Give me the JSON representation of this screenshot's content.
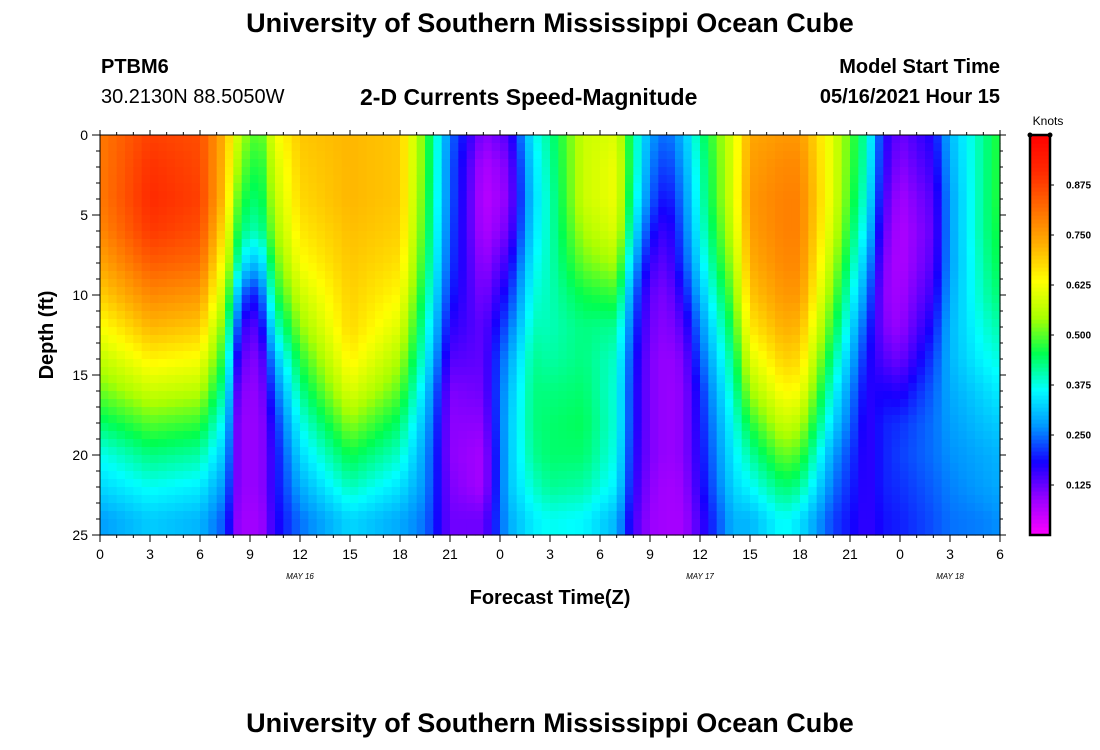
{
  "header": {
    "title": "University of Southern Mississippi Ocean Cube",
    "station_id": "PTBM6",
    "station_coords": "30.2130N  88.5050W",
    "model_start_label": "Model Start Time",
    "model_start_value": "05/16/2021 Hour 15"
  },
  "footer": {
    "title": "University of Southern Mississippi Ocean Cube"
  },
  "colors": {
    "palette": [
      "#ff00ff",
      "#9900ff",
      "#1500ff",
      "#0096ff",
      "#00ffff",
      "#00ff50",
      "#aaff00",
      "#ffff00",
      "#ffb000",
      "#ff6c00",
      "#ff2a00",
      "#ff0000"
    ]
  },
  "chart_data": {
    "type": "heatmap",
    "title": "2-D Currents Speed-Magnitude",
    "xlabel": "Forecast Time(Z)",
    "ylabel": "Depth (ft)",
    "x_hours_range": [
      0,
      54
    ],
    "ylim": [
      0,
      25
    ],
    "y_inverted": true,
    "y_ticks": [
      "0",
      "5",
      "10",
      "15",
      "20",
      "25"
    ],
    "x_ticks": [
      "0",
      "3",
      "6",
      "9",
      "12",
      "15",
      "18",
      "21",
      "0",
      "3",
      "6",
      "9",
      "12",
      "15",
      "18",
      "21",
      "0",
      "3",
      "6"
    ],
    "x_tick_step_hours": 3,
    "date_labels": [
      {
        "label": "MAY 16",
        "hour": 12
      },
      {
        "label": "MAY 17",
        "hour": 36
      },
      {
        "label": "MAY 18",
        "hour": 51
      }
    ],
    "colorbar": {
      "unit": "Knots",
      "range": [
        0,
        1.0
      ],
      "tick_labels": [
        "0.125",
        "0.250",
        "0.375",
        "0.500",
        "0.625",
        "0.750",
        "0.875"
      ],
      "tick_values": [
        0.125,
        0.25,
        0.375,
        0.5,
        0.625,
        0.75,
        0.875
      ]
    },
    "hours": [
      0,
      3,
      6,
      7.5,
      8.3,
      9,
      9.7,
      10.5,
      12,
      15,
      18,
      19.5,
      21,
      23,
      24.5,
      26,
      27,
      29,
      31,
      32,
      33,
      34,
      35,
      36,
      38,
      39,
      41,
      42,
      44,
      46,
      47,
      48,
      50,
      51,
      53,
      54
    ],
    "depths": [
      0,
      2,
      4,
      6,
      8,
      10,
      12,
      14,
      16,
      18,
      20,
      22,
      24,
      25
    ],
    "speed": [
      [
        0.8,
        0.8,
        0.8,
        0.78,
        0.74,
        0.69,
        0.63,
        0.57,
        0.51,
        0.44,
        0.37,
        0.33,
        0.28,
        0.28
      ],
      [
        0.88,
        0.9,
        0.91,
        0.89,
        0.84,
        0.78,
        0.72,
        0.65,
        0.58,
        0.5,
        0.43,
        0.37,
        0.32,
        0.32
      ],
      [
        0.86,
        0.87,
        0.88,
        0.86,
        0.82,
        0.76,
        0.7,
        0.63,
        0.56,
        0.48,
        0.41,
        0.35,
        0.3,
        0.3
      ],
      [
        0.72,
        0.71,
        0.7,
        0.66,
        0.61,
        0.56,
        0.5,
        0.45,
        0.4,
        0.35,
        0.31,
        0.27,
        0.23,
        0.23
      ],
      [
        0.58,
        0.54,
        0.5,
        0.46,
        0.4,
        0.3,
        0.22,
        0.16,
        0.12,
        0.1,
        0.1,
        0.1,
        0.09,
        0.09
      ],
      [
        0.5,
        0.47,
        0.44,
        0.4,
        0.3,
        0.18,
        0.12,
        0.1,
        0.09,
        0.09,
        0.09,
        0.09,
        0.08,
        0.08
      ],
      [
        0.5,
        0.47,
        0.45,
        0.42,
        0.33,
        0.24,
        0.18,
        0.13,
        0.11,
        0.1,
        0.1,
        0.1,
        0.09,
        0.09
      ],
      [
        0.62,
        0.59,
        0.57,
        0.54,
        0.5,
        0.45,
        0.38,
        0.3,
        0.24,
        0.2,
        0.18,
        0.18,
        0.17,
        0.17
      ],
      [
        0.7,
        0.69,
        0.68,
        0.66,
        0.63,
        0.58,
        0.53,
        0.47,
        0.42,
        0.37,
        0.33,
        0.29,
        0.25,
        0.25
      ],
      [
        0.72,
        0.72,
        0.72,
        0.71,
        0.7,
        0.69,
        0.68,
        0.65,
        0.6,
        0.53,
        0.46,
        0.4,
        0.33,
        0.33
      ],
      [
        0.7,
        0.7,
        0.7,
        0.69,
        0.67,
        0.64,
        0.6,
        0.55,
        0.5,
        0.44,
        0.39,
        0.34,
        0.29,
        0.29
      ],
      [
        0.5,
        0.5,
        0.49,
        0.48,
        0.46,
        0.43,
        0.4,
        0.37,
        0.33,
        0.3,
        0.28,
        0.27,
        0.25,
        0.25
      ],
      [
        0.25,
        0.24,
        0.24,
        0.23,
        0.22,
        0.2,
        0.17,
        0.14,
        0.11,
        0.1,
        0.1,
        0.11,
        0.12,
        0.12
      ],
      [
        0.1,
        0.07,
        0.06,
        0.07,
        0.09,
        0.11,
        0.13,
        0.13,
        0.12,
        0.1,
        0.08,
        0.08,
        0.12,
        0.12
      ],
      [
        0.14,
        0.11,
        0.1,
        0.12,
        0.16,
        0.2,
        0.24,
        0.28,
        0.3,
        0.31,
        0.31,
        0.31,
        0.29,
        0.29
      ],
      [
        0.36,
        0.34,
        0.33,
        0.34,
        0.36,
        0.38,
        0.4,
        0.42,
        0.43,
        0.43,
        0.42,
        0.39,
        0.35,
        0.35
      ],
      [
        0.42,
        0.41,
        0.4,
        0.4,
        0.4,
        0.4,
        0.4,
        0.41,
        0.43,
        0.44,
        0.44,
        0.42,
        0.37,
        0.37
      ],
      [
        0.58,
        0.58,
        0.58,
        0.55,
        0.51,
        0.46,
        0.43,
        0.43,
        0.44,
        0.45,
        0.44,
        0.41,
        0.36,
        0.36
      ],
      [
        0.6,
        0.62,
        0.62,
        0.6,
        0.55,
        0.48,
        0.42,
        0.39,
        0.38,
        0.38,
        0.37,
        0.35,
        0.3,
        0.3
      ],
      [
        0.42,
        0.42,
        0.4,
        0.36,
        0.3,
        0.25,
        0.22,
        0.2,
        0.19,
        0.19,
        0.18,
        0.17,
        0.15,
        0.15
      ],
      [
        0.28,
        0.26,
        0.24,
        0.2,
        0.16,
        0.13,
        0.12,
        0.11,
        0.11,
        0.11,
        0.11,
        0.1,
        0.09,
        0.09
      ],
      [
        0.24,
        0.21,
        0.18,
        0.15,
        0.13,
        0.11,
        0.1,
        0.09,
        0.09,
        0.09,
        0.09,
        0.08,
        0.08,
        0.08
      ],
      [
        0.3,
        0.28,
        0.26,
        0.24,
        0.22,
        0.18,
        0.14,
        0.11,
        0.1,
        0.1,
        0.1,
        0.09,
        0.08,
        0.08
      ],
      [
        0.42,
        0.4,
        0.39,
        0.37,
        0.34,
        0.3,
        0.26,
        0.23,
        0.2,
        0.19,
        0.18,
        0.17,
        0.15,
        0.15
      ],
      [
        0.6,
        0.6,
        0.6,
        0.58,
        0.55,
        0.51,
        0.47,
        0.43,
        0.4,
        0.37,
        0.35,
        0.33,
        0.3,
        0.3
      ],
      [
        0.74,
        0.75,
        0.76,
        0.75,
        0.73,
        0.7,
        0.66,
        0.6,
        0.54,
        0.47,
        0.41,
        0.36,
        0.3,
        0.3
      ],
      [
        0.76,
        0.78,
        0.79,
        0.79,
        0.78,
        0.76,
        0.73,
        0.69,
        0.64,
        0.58,
        0.51,
        0.44,
        0.37,
        0.37
      ],
      [
        0.76,
        0.78,
        0.79,
        0.79,
        0.78,
        0.76,
        0.72,
        0.68,
        0.63,
        0.56,
        0.49,
        0.42,
        0.34,
        0.34
      ],
      [
        0.6,
        0.6,
        0.6,
        0.58,
        0.55,
        0.51,
        0.47,
        0.42,
        0.37,
        0.33,
        0.28,
        0.25,
        0.22,
        0.22
      ],
      [
        0.4,
        0.39,
        0.37,
        0.34,
        0.3,
        0.26,
        0.22,
        0.19,
        0.17,
        0.16,
        0.16,
        0.16,
        0.16,
        0.16
      ],
      [
        0.18,
        0.17,
        0.15,
        0.13,
        0.11,
        0.1,
        0.11,
        0.14,
        0.18,
        0.2,
        0.2,
        0.2,
        0.19,
        0.19
      ],
      [
        0.12,
        0.1,
        0.08,
        0.07,
        0.07,
        0.08,
        0.09,
        0.12,
        0.17,
        0.21,
        0.22,
        0.21,
        0.2,
        0.2
      ],
      [
        0.18,
        0.16,
        0.14,
        0.13,
        0.14,
        0.16,
        0.19,
        0.22,
        0.24,
        0.25,
        0.25,
        0.24,
        0.23,
        0.23
      ],
      [
        0.3,
        0.29,
        0.28,
        0.28,
        0.28,
        0.29,
        0.3,
        0.3,
        0.29,
        0.28,
        0.27,
        0.26,
        0.25,
        0.25
      ],
      [
        0.42,
        0.42,
        0.42,
        0.42,
        0.41,
        0.4,
        0.38,
        0.36,
        0.33,
        0.31,
        0.29,
        0.28,
        0.26,
        0.26
      ],
      [
        0.48,
        0.48,
        0.48,
        0.47,
        0.46,
        0.44,
        0.41,
        0.38,
        0.35,
        0.32,
        0.3,
        0.29,
        0.27,
        0.27
      ]
    ]
  }
}
